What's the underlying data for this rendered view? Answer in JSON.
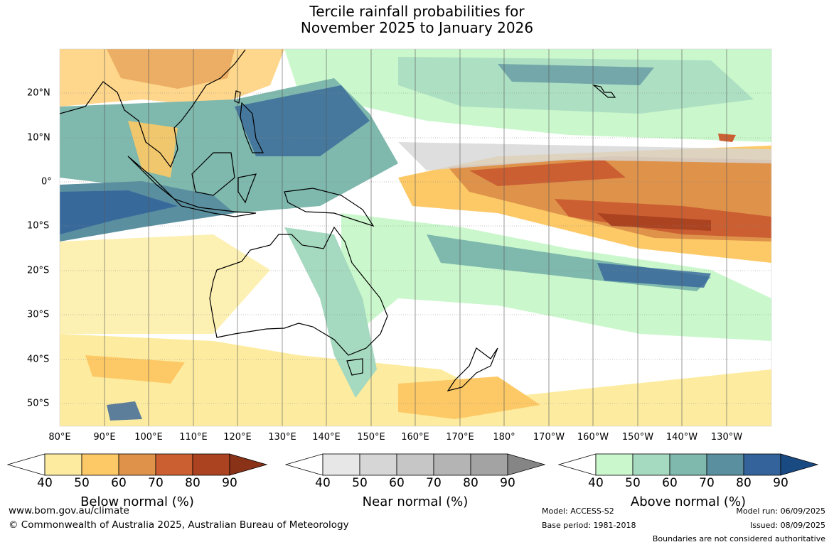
{
  "title_line1": "Tercile rainfall probabilities for",
  "title_line2": "November 2025 to January 2026",
  "lon_labels": [
    "80°E",
    "90°E",
    "100°E",
    "110°E",
    "120°E",
    "130°E",
    "140°E",
    "150°E",
    "160°E",
    "170°E",
    "180°",
    "170°W",
    "160°W",
    "150°W",
    "140°W",
    "130°W"
  ],
  "lat_labels": [
    "20°N",
    "10°N",
    "0°",
    "10°S",
    "20°S",
    "30°S",
    "40°S",
    "50°S"
  ],
  "colorbars": [
    {
      "title": "Below normal (%)",
      "ticks": [
        "40",
        "50",
        "60",
        "70",
        "80",
        "90"
      ],
      "colors": [
        "#fdeca0",
        "#fdc966",
        "#de924a",
        "#cb5f32",
        "#ab4220",
        "#8a3218"
      ]
    },
    {
      "title": "Near normal (%)",
      "ticks": [
        "40",
        "50",
        "60",
        "70",
        "80",
        "90"
      ],
      "colors": [
        "#e7e7e7",
        "#d6d6d6",
        "#c6c6c6",
        "#b4b4b4",
        "#a3a3a3",
        "#858585"
      ]
    },
    {
      "title": "Above normal (%)",
      "ticks": [
        "40",
        "50",
        "60",
        "70",
        "80",
        "90"
      ],
      "colors": [
        "#caf8cc",
        "#a5d9c0",
        "#7fb8ad",
        "#5a8fa0",
        "#33639a",
        "#1a4a82"
      ]
    }
  ],
  "footer": {
    "website": "www.bom.gov.au/climate",
    "copyright": "© Commonwealth of Australia 2025, Australian Bureau of Meteorology",
    "model": "Model: ACCESS-S2",
    "base_period": "Base period: 1981-2018",
    "model_run": "Model run: 06/09/2025",
    "issued": "Issued: 08/09/2025",
    "disclaimer": "Boundaries are not considered authoritative"
  }
}
